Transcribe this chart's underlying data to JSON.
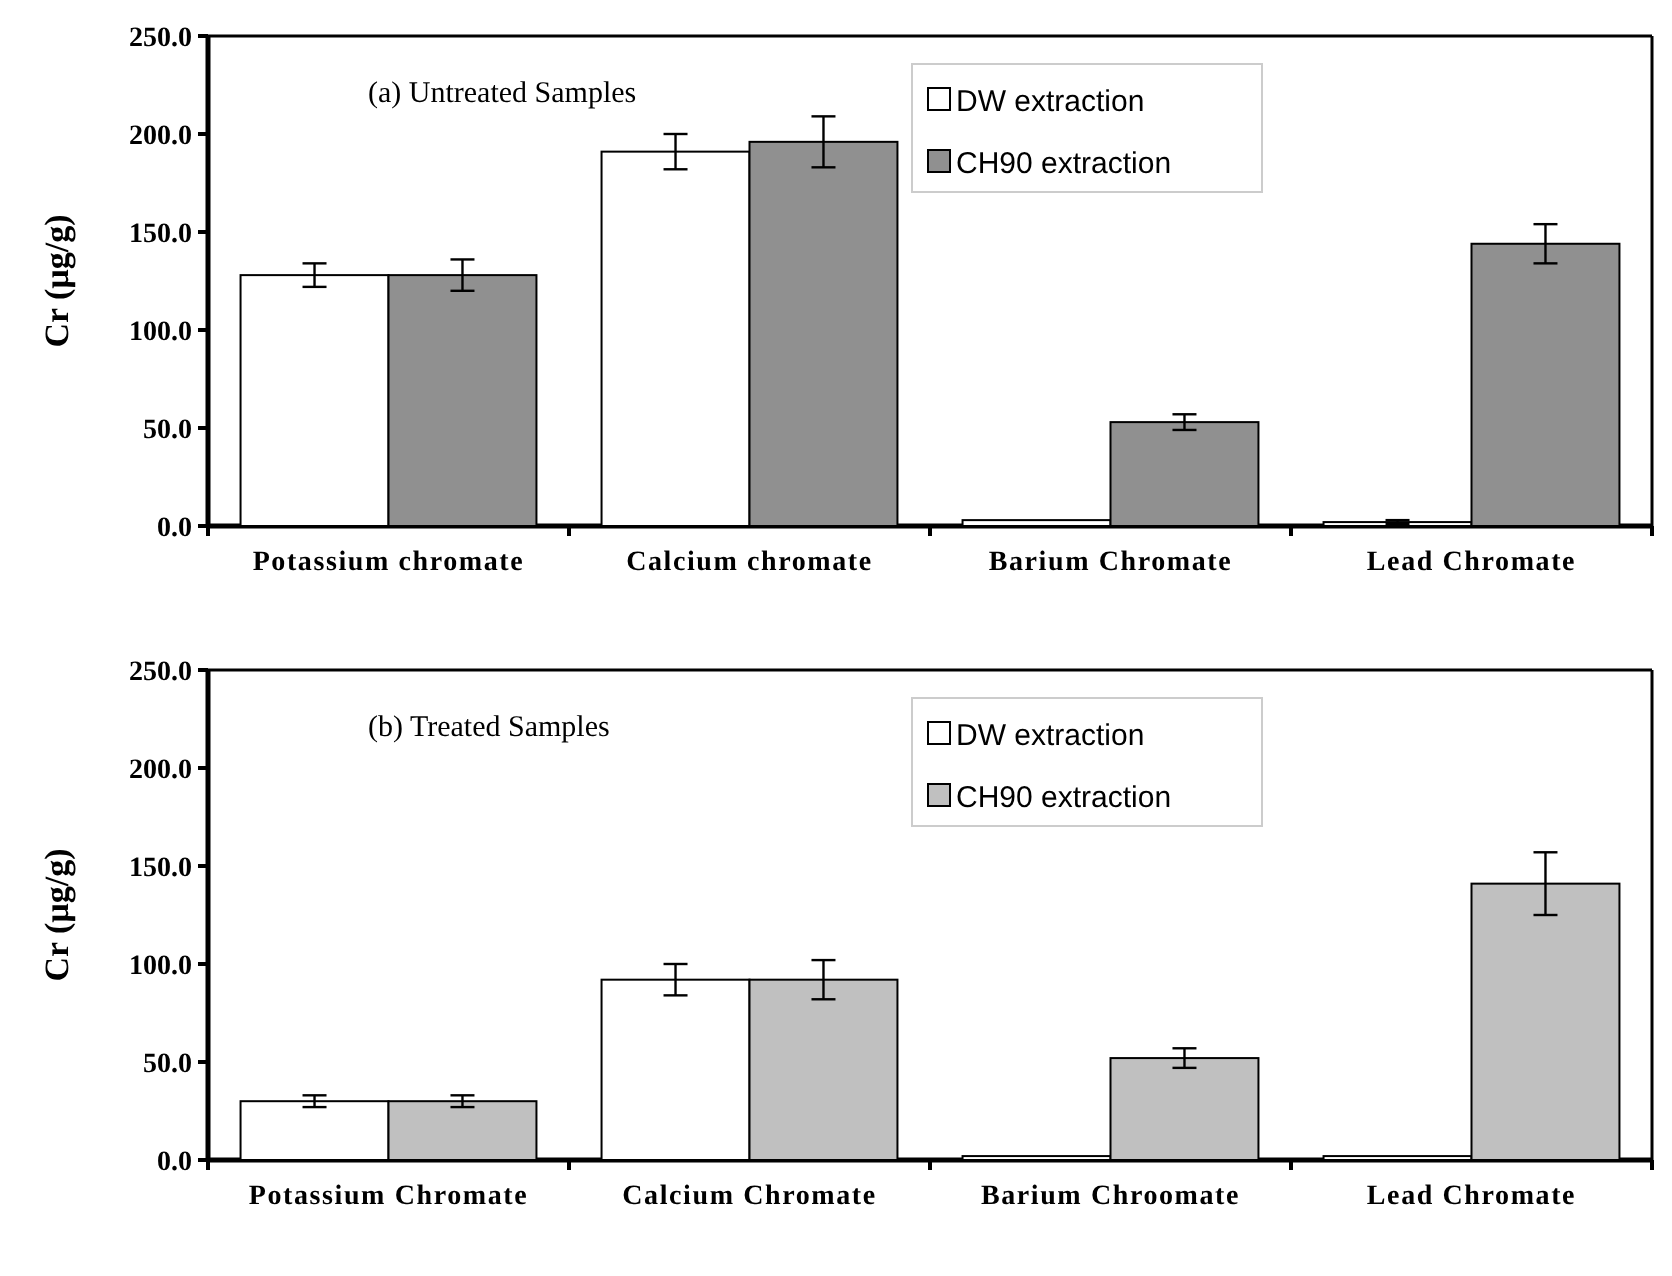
{
  "chart_data": [
    {
      "type": "bar",
      "title": "(a) Untreated Samples",
      "ylabel": "Cr (µg/g)",
      "categories": [
        "Potassium chromate",
        "Calcium chromate",
        "Barium Chromate",
        "Lead Chromate"
      ],
      "series": [
        {
          "name": "DW extraction",
          "color": "#ffffff",
          "values": [
            128,
            191,
            3,
            2
          ],
          "errors": [
            6,
            9,
            null,
            1
          ]
        },
        {
          "name": "CH90 extraction",
          "color": "#909090",
          "values": [
            128,
            196,
            53,
            144
          ],
          "errors": [
            8,
            13,
            4,
            10
          ]
        }
      ],
      "ylim": [
        0,
        250
      ],
      "yticks": [
        {
          "value": 0,
          "label": "0.0"
        },
        {
          "value": 50,
          "label": "50.0"
        },
        {
          "value": 100,
          "label": "100.0"
        },
        {
          "value": 150,
          "label": "150.0"
        },
        {
          "value": 200,
          "label": "200.0"
        },
        {
          "value": 250,
          "label": "250.0"
        }
      ],
      "grid": false,
      "legend": "top right"
    },
    {
      "type": "bar",
      "title": "(b) Treated Samples",
      "ylabel": "Cr (µg/g)",
      "categories": [
        "Potassium Chromate",
        "Calcium Chromate",
        "Barium Chroomate",
        "Lead Chromate"
      ],
      "series": [
        {
          "name": "DW extraction",
          "color": "#ffffff",
          "values": [
            30,
            92,
            2,
            2
          ],
          "errors": [
            3,
            8,
            null,
            null
          ]
        },
        {
          "name": "CH90 extraction",
          "color": "#c0c0c0",
          "values": [
            30,
            92,
            52,
            141
          ],
          "errors": [
            3,
            10,
            5,
            16
          ]
        }
      ],
      "ylim": [
        0,
        250
      ],
      "yticks": [
        {
          "value": 0,
          "label": "0.0"
        },
        {
          "value": 50,
          "label": "50.0"
        },
        {
          "value": 100,
          "label": "100.0"
        },
        {
          "value": 150,
          "label": "150.0"
        },
        {
          "value": 200,
          "label": "200.0"
        },
        {
          "value": 250,
          "label": "250.0"
        }
      ],
      "grid": false,
      "legend": "top right"
    }
  ]
}
